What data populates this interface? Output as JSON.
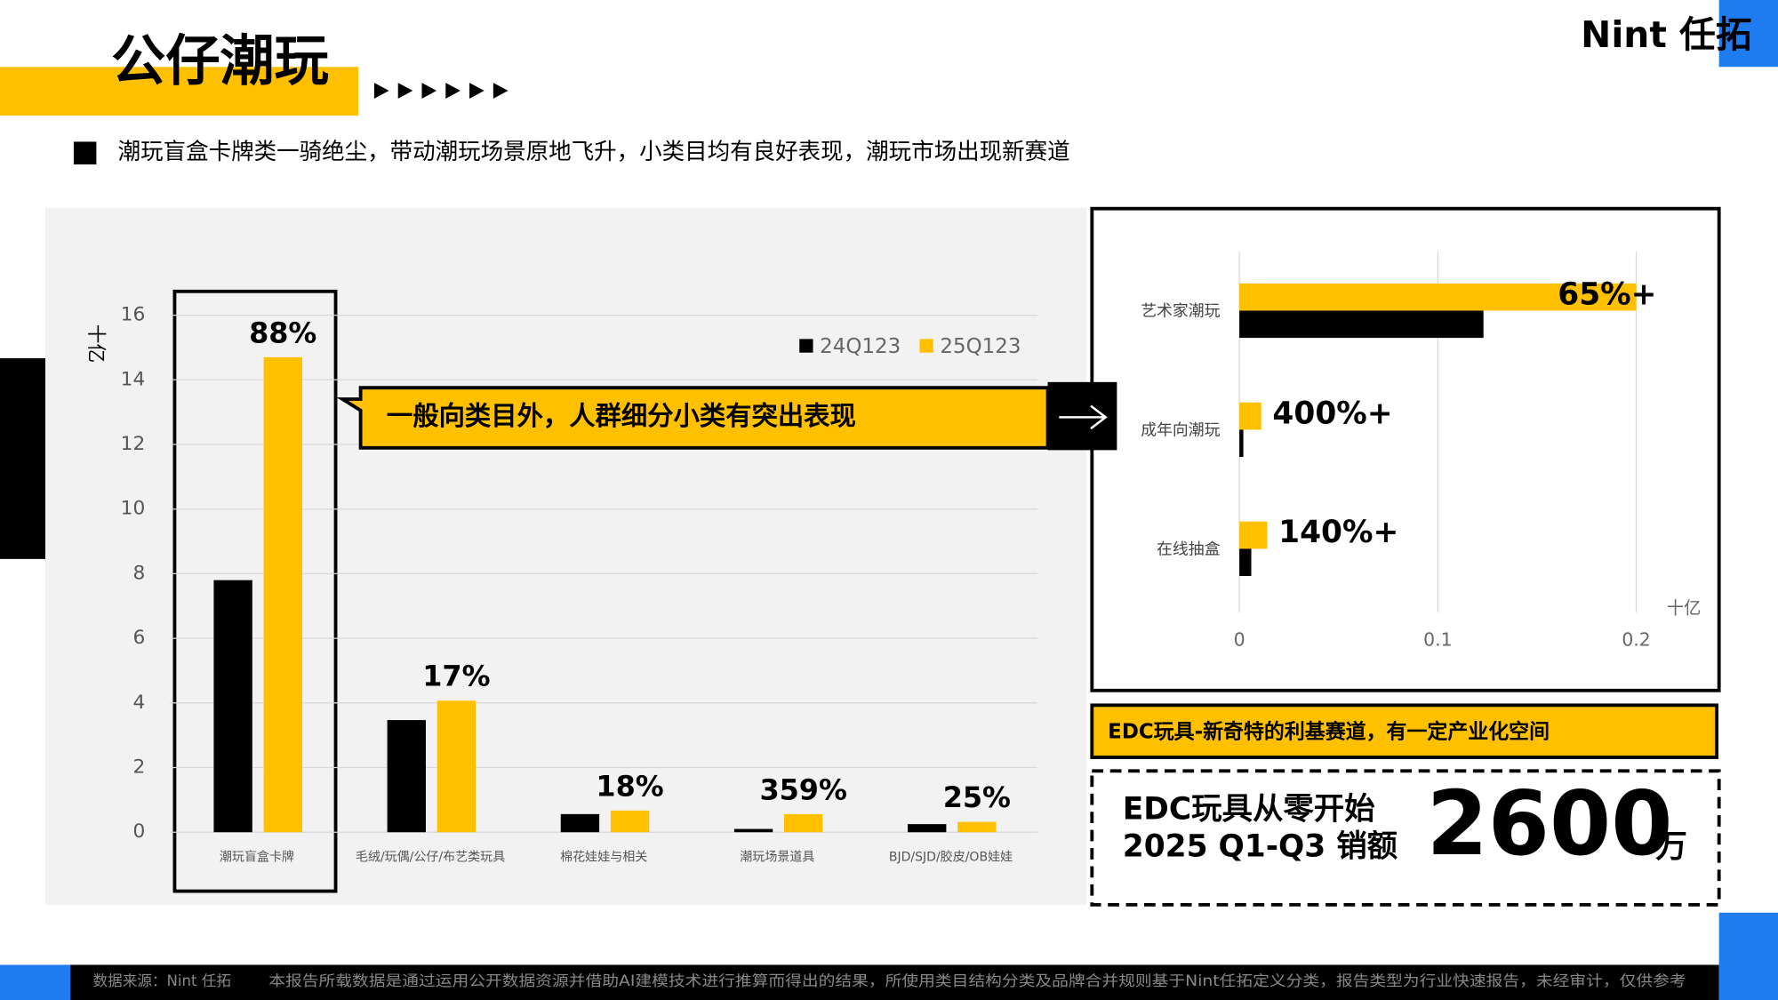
{
  "header": {
    "title": "公仔潮玩",
    "logo": "Nint 任拓"
  },
  "summary": "潮玩盲盒卡牌类一骑绝尘，带动潮玩场景原地飞升，小类目均有良好表现，潮玩市场出现新赛道",
  "chart_data": [
    {
      "type": "bar",
      "y_label": "十亿",
      "categories": [
        "潮玩盲盒卡牌",
        "毛绒/玩偶/公仔/布艺类玩具",
        "棉花娃娃与相关",
        "潮玩场景道具",
        "BJD/SJD/胶皮/OB娃娃"
      ],
      "series": [
        {
          "name": "24Q123",
          "color": "#000000",
          "values": [
            7.8,
            3.47,
            0.56,
            0.1,
            0.25
          ]
        },
        {
          "name": "25Q123",
          "color": "#FFC000",
          "values": [
            14.7,
            4.07,
            0.67,
            0.56,
            0.32
          ]
        }
      ],
      "growth_labels": [
        "88%",
        "17%",
        "18%",
        "359%",
        "25%"
      ],
      "ylim": [
        0,
        16
      ],
      "yticks": [
        0,
        2,
        4,
        6,
        8,
        10,
        12,
        14,
        16
      ],
      "grid": true,
      "legend": "top-right"
    },
    {
      "type": "hbar",
      "x_label": "十亿",
      "categories": [
        "艺术家潮玩",
        "成年向潮玩",
        "在线抽盒"
      ],
      "series": [
        {
          "color": "#FFC000",
          "values": [
            0.2,
            0.011,
            0.014
          ]
        },
        {
          "color": "#000000",
          "values": [
            0.123,
            0.002,
            0.006
          ]
        }
      ],
      "growth_labels": [
        "65%+",
        "400%+",
        "140%+"
      ],
      "xlim": [
        0,
        0.22
      ],
      "xticks": [
        0,
        0.1,
        0.2
      ],
      "grid": true
    }
  ],
  "callout": "一般向类目外，人群细分小类有突出表现",
  "edc": {
    "banner": "EDC玩具-新奇特的利基赛道，有一定产业化空间",
    "line1": "EDC玩具从零开始",
    "line2": "2025 Q1-Q3 销额",
    "value": 2600,
    "unit": "万"
  },
  "footer": {
    "source": "数据来源：Nint 任拓",
    "disclaimer": "本报告所载数据是通过运用公开数据资源并借助AI建模技术进行推算而得出的结果，所使用类目结构分类及品牌合并规则基于Nint任拓定义分类，报告类型为行业快速报告，未经审计，仅供参考"
  }
}
